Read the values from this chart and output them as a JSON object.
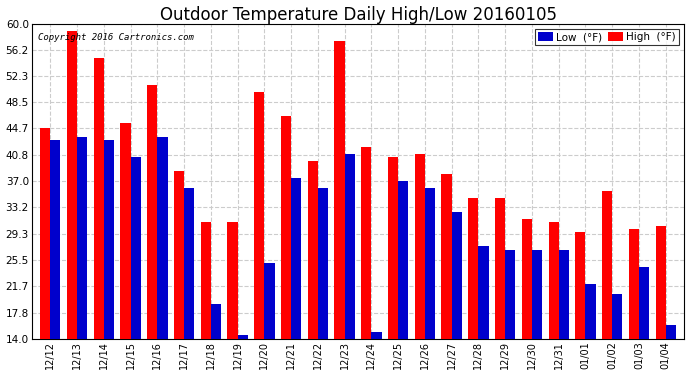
{
  "title": "Outdoor Temperature Daily High/Low 20160105",
  "copyright": "Copyright 2016 Cartronics.com",
  "categories": [
    "12/12",
    "12/13",
    "12/14",
    "12/15",
    "12/16",
    "12/17",
    "12/18",
    "12/19",
    "12/20",
    "12/21",
    "12/22",
    "12/23",
    "12/24",
    "12/25",
    "12/26",
    "12/27",
    "12/28",
    "12/29",
    "12/30",
    "12/31",
    "01/01",
    "01/02",
    "01/03",
    "01/04"
  ],
  "high_values": [
    44.7,
    59.0,
    55.0,
    45.5,
    51.0,
    38.5,
    31.0,
    31.0,
    50.0,
    46.5,
    40.0,
    57.5,
    42.0,
    40.5,
    41.0,
    38.0,
    34.5,
    34.5,
    31.5,
    31.0,
    29.5,
    35.5,
    30.0,
    30.5
  ],
  "low_values": [
    43.0,
    43.5,
    43.0,
    40.5,
    43.5,
    36.0,
    19.0,
    14.5,
    25.0,
    37.5,
    36.0,
    41.0,
    15.0,
    37.0,
    36.0,
    32.5,
    27.5,
    27.0,
    27.0,
    27.0,
    22.0,
    20.5,
    24.5,
    16.0
  ],
  "high_color": "#FF0000",
  "low_color": "#0000CC",
  "bg_color": "#FFFFFF",
  "plot_bg_color": "#FFFFFF",
  "ylim_min": 14.0,
  "ylim_max": 60.0,
  "yticks": [
    14.0,
    17.8,
    21.7,
    25.5,
    29.3,
    33.2,
    37.0,
    40.8,
    44.7,
    48.5,
    52.3,
    56.2,
    60.0
  ],
  "ytick_labels": [
    "14.0",
    "17.8",
    "21.7",
    "25.5",
    "29.3",
    "33.2",
    "37.0",
    "40.8",
    "44.7",
    "48.5",
    "52.3",
    "56.2",
    "60.0"
  ],
  "grid_color": "#CCCCCC",
  "title_fontsize": 12,
  "legend_low_label": "Low  (°F)",
  "legend_high_label": "High  (°F)",
  "bar_width": 0.38
}
